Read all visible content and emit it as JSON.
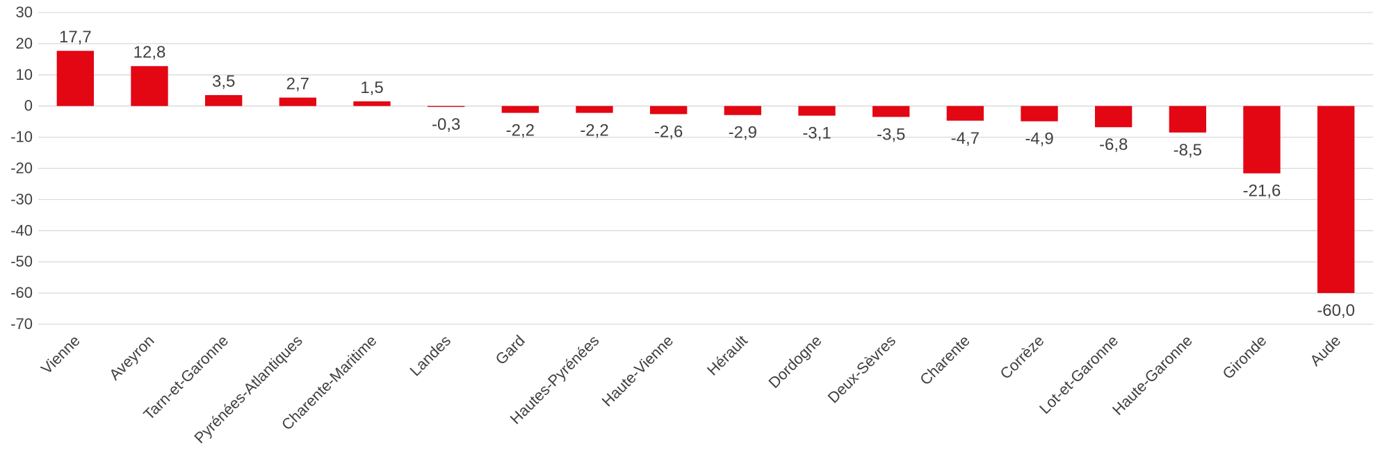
{
  "chart_data": {
    "type": "bar",
    "title": "",
    "xlabel": "",
    "ylabel": "",
    "ylim": [
      -70,
      30
    ],
    "yticks": [
      30,
      20,
      10,
      0,
      -10,
      -20,
      -30,
      -40,
      -50,
      -60,
      -70
    ],
    "ytick_labels": [
      "30",
      "20",
      "10",
      "0",
      "-10",
      "-20",
      "-30",
      "-40",
      "-50",
      "-60",
      "-70"
    ],
    "grid": true,
    "legend": "none",
    "bar_color": "#e30613",
    "categories": [
      "Vienne",
      "Aveyron",
      "Tarn-et-Garonne",
      "Pyrénées-Atlantiques",
      "Charente-Maritime",
      "Landes",
      "Gard",
      "Hautes-Pyrénées",
      "Haute-Vienne",
      "Hérault",
      "Dordogne",
      "Deux-Sèvres",
      "Charente",
      "Corrèze",
      "Lot-et-Garonne",
      "Haute-Garonne",
      "Gironde",
      "Aude"
    ],
    "values": [
      17.7,
      12.8,
      3.5,
      2.7,
      1.5,
      -0.3,
      -2.2,
      -2.2,
      -2.6,
      -2.9,
      -3.1,
      -3.5,
      -4.7,
      -4.9,
      -6.8,
      -8.5,
      -21.6,
      -60.0
    ],
    "value_labels": [
      "17,7",
      "12,8",
      "3,5",
      "2,7",
      "1,5",
      "-0,3",
      "-2,2",
      "-2,2",
      "-2,6",
      "-2,9",
      "-3,1",
      "-3,5",
      "-4,7",
      "-4,9",
      "-6,8",
      "-8,5",
      "-21,6",
      "-60,0"
    ]
  }
}
